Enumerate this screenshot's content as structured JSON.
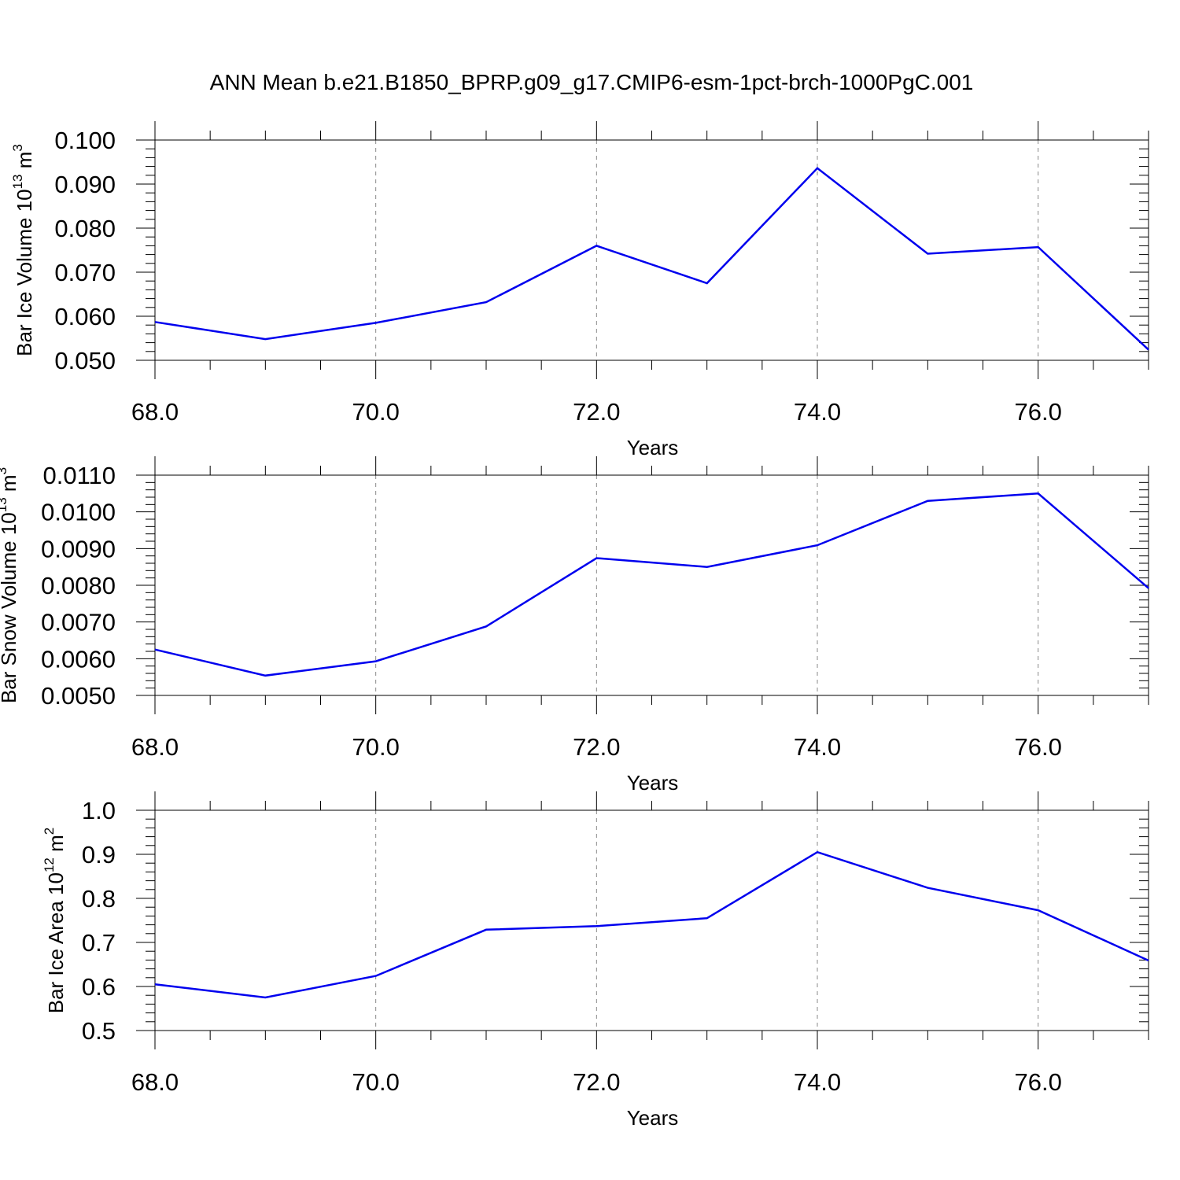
{
  "title": "ANN Mean b.e21.B1850_BPRP.g09_g17.CMIP6-esm-1pct-brch-1000PgC.001",
  "line_color": "#0000ee",
  "chart_data": [
    {
      "type": "line",
      "ylabel": "Bar Ice Volume 10",
      "ylabel_exp": "13",
      "ylabel_unit": " m",
      "ylabel_unit_exp": "3",
      "xlabel": "Years",
      "xlim": [
        68,
        77
      ],
      "ylim": [
        0.05,
        0.1
      ],
      "x_ticks": [
        68,
        70,
        72,
        74,
        76
      ],
      "x_tick_labels": [
        "68.0",
        "70.0",
        "72.0",
        "74.0",
        "76.0"
      ],
      "y_ticks": [
        0.05,
        0.06,
        0.07,
        0.08,
        0.09,
        0.1
      ],
      "y_tick_labels": [
        "0.050",
        "0.060",
        "0.070",
        "0.080",
        "0.090",
        "0.100"
      ],
      "grid": "vertical dashed at major x ticks",
      "x": [
        68,
        69,
        70,
        71,
        72,
        73,
        74,
        75,
        76,
        77
      ],
      "y": [
        0.0587,
        0.0548,
        0.0585,
        0.0632,
        0.076,
        0.0675,
        0.0936,
        0.0742,
        0.0757,
        0.0524
      ]
    },
    {
      "type": "line",
      "ylabel": "Bar Snow Volume 10",
      "ylabel_exp": "13",
      "ylabel_unit": " m",
      "ylabel_unit_exp": "3",
      "xlabel": "Years",
      "xlim": [
        68,
        77
      ],
      "ylim": [
        0.005,
        0.011
      ],
      "x_ticks": [
        68,
        70,
        72,
        74,
        76
      ],
      "x_tick_labels": [
        "68.0",
        "70.0",
        "72.0",
        "74.0",
        "76.0"
      ],
      "y_ticks": [
        0.005,
        0.006,
        0.007,
        0.008,
        0.009,
        0.01,
        0.011
      ],
      "y_tick_labels": [
        "0.0050",
        "0.0060",
        "0.0070",
        "0.0080",
        "0.0090",
        "0.0100",
        "0.0110"
      ],
      "grid": "vertical dashed at major x ticks",
      "x": [
        68,
        69,
        70,
        71,
        72,
        73,
        74,
        75,
        76,
        77
      ],
      "y": [
        0.00625,
        0.00554,
        0.00593,
        0.00688,
        0.00874,
        0.0085,
        0.00909,
        0.0103,
        0.0105,
        0.00792
      ]
    },
    {
      "type": "line",
      "ylabel": "Bar Ice Area 10",
      "ylabel_exp": "12",
      "ylabel_unit": " m",
      "ylabel_unit_exp": "2",
      "xlabel": "Years",
      "xlim": [
        68,
        77
      ],
      "ylim": [
        0.5,
        1.0
      ],
      "x_ticks": [
        68,
        70,
        72,
        74,
        76
      ],
      "x_tick_labels": [
        "68.0",
        "70.0",
        "72.0",
        "74.0",
        "76.0"
      ],
      "y_ticks": [
        0.5,
        0.6,
        0.7,
        0.8,
        0.9,
        1.0
      ],
      "y_tick_labels": [
        "0.5",
        "0.6",
        "0.7",
        "0.8",
        "0.9",
        "1.0"
      ],
      "grid": "vertical dashed at major x ticks",
      "x": [
        68,
        69,
        70,
        71,
        72,
        73,
        74,
        75,
        76,
        77
      ],
      "y": [
        0.605,
        0.575,
        0.624,
        0.729,
        0.737,
        0.755,
        0.905,
        0.824,
        0.773,
        0.659
      ]
    }
  ]
}
